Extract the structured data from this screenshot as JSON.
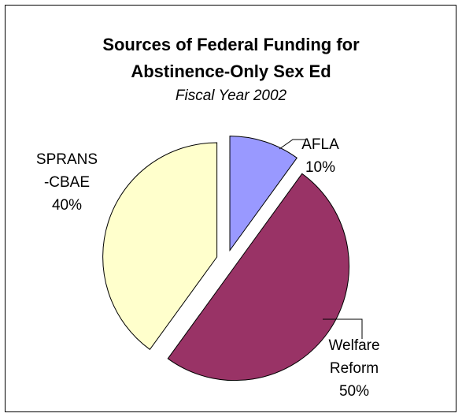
{
  "chart_data": {
    "type": "pie",
    "title_line1": "Sources of Federal Funding for",
    "title_line2": "Abstinence-Only Sex Ed",
    "subtitle": "Fiscal Year 2002",
    "exploded": true,
    "slices": [
      {
        "label_lines": [
          "AFLA",
          "10%"
        ],
        "value": 10,
        "color": "#9999ff"
      },
      {
        "label_lines": [
          "Welfare",
          "Reform",
          "50%"
        ],
        "value": 50,
        "color": "#993366"
      },
      {
        "label_lines": [
          "SPRANS",
          "-CBAE",
          "40%"
        ],
        "value": 40,
        "color": "#ffffcc"
      }
    ]
  }
}
